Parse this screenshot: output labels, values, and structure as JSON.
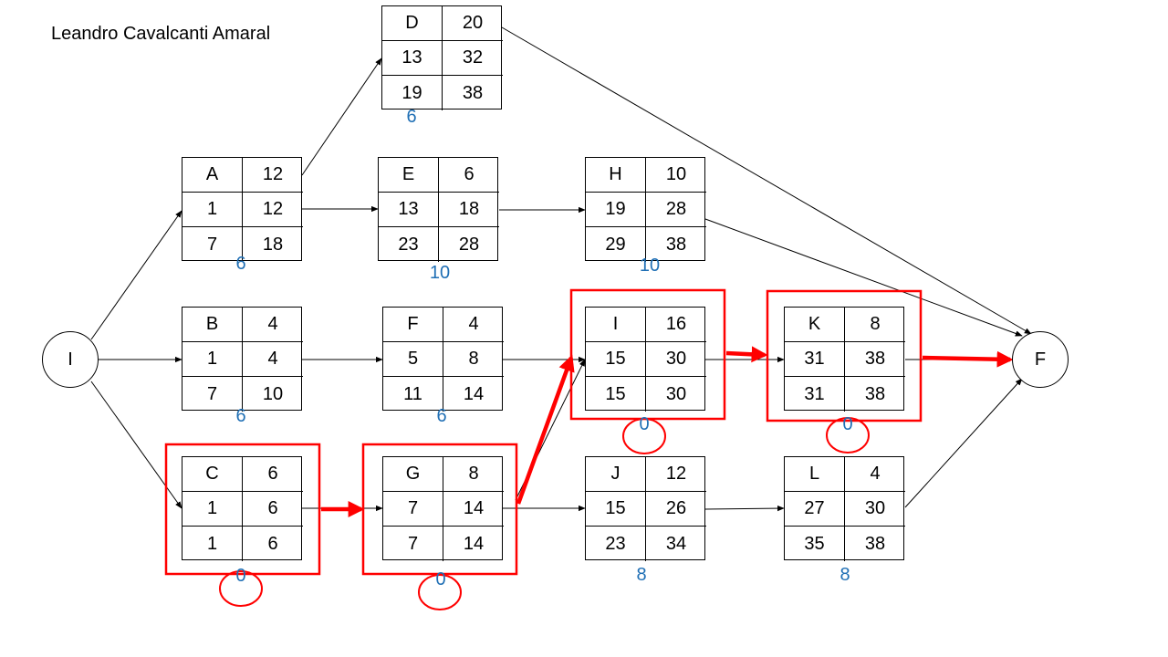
{
  "author": "Leandro Cavalcanti Amaral",
  "colors": {
    "critical": "#ff0000",
    "slack": "#1f6fb5",
    "line": "#000000"
  },
  "terminals": {
    "start": "I",
    "end": "F"
  },
  "nodes": {
    "D": {
      "name": "D",
      "duration": "20",
      "es": "13",
      "ef": "32",
      "ls": "19",
      "lf": "38",
      "slack": "6",
      "critical": false
    },
    "A": {
      "name": "A",
      "duration": "12",
      "es": "1",
      "ef": "12",
      "ls": "7",
      "lf": "18",
      "slack": "6",
      "critical": false
    },
    "E": {
      "name": "E",
      "duration": "6",
      "es": "13",
      "ef": "18",
      "ls": "23",
      "lf": "28",
      "slack": "10",
      "critical": false
    },
    "H": {
      "name": "H",
      "duration": "10",
      "es": "19",
      "ef": "28",
      "ls": "29",
      "lf": "38",
      "slack": "10",
      "critical": false
    },
    "B": {
      "name": "B",
      "duration": "4",
      "es": "1",
      "ef": "4",
      "ls": "7",
      "lf": "10",
      "slack": "6",
      "critical": false
    },
    "F": {
      "name": "F",
      "duration": "4",
      "es": "5",
      "ef": "8",
      "ls": "11",
      "lf": "14",
      "slack": "6",
      "critical": false
    },
    "I": {
      "name": "I",
      "duration": "16",
      "es": "15",
      "ef": "30",
      "ls": "15",
      "lf": "30",
      "slack": "0",
      "critical": true
    },
    "K": {
      "name": "K",
      "duration": "8",
      "es": "31",
      "ef": "38",
      "ls": "31",
      "lf": "38",
      "slack": "0",
      "critical": true
    },
    "C": {
      "name": "C",
      "duration": "6",
      "es": "1",
      "ef": "6",
      "ls": "1",
      "lf": "6",
      "slack": "0",
      "critical": true
    },
    "G": {
      "name": "G",
      "duration": "8",
      "es": "7",
      "ef": "14",
      "ls": "7",
      "lf": "14",
      "slack": "0",
      "critical": true
    },
    "J": {
      "name": "J",
      "duration": "12",
      "es": "15",
      "ef": "26",
      "ls": "23",
      "lf": "34",
      "slack": "8",
      "critical": false
    },
    "L": {
      "name": "L",
      "duration": "4",
      "es": "27",
      "ef": "30",
      "ls": "35",
      "lf": "38",
      "slack": "8",
      "critical": false
    }
  }
}
